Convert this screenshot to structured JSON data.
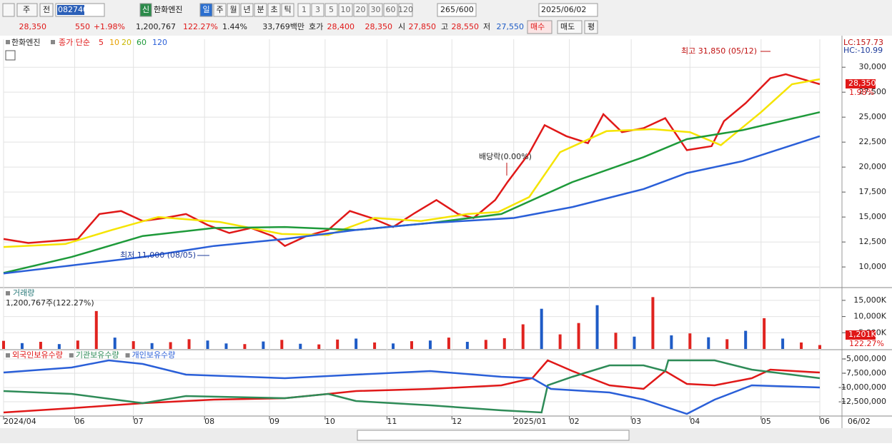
{
  "toolbar": {
    "period": "주",
    "prev": "전",
    "code": "082740",
    "badge": "신",
    "name": "한화엔진",
    "tabs": [
      "일",
      "주",
      "월",
      "년",
      "분",
      "초",
      "틱"
    ],
    "minutes": [
      "1",
      "3",
      "5",
      "10",
      "20",
      "30",
      "60",
      "120"
    ],
    "count": "265",
    "total": "/600",
    "date": "2025/06/02"
  },
  "quote_bar": [
    "28,350",
    "550",
    "+1.98%",
    "1,200,767",
    "122.27%",
    "1.44%",
    "33,769백만",
    "호가",
    "28,400",
    "28,350",
    "시",
    "27,850",
    "고",
    "28,550",
    "저",
    "27,550",
    "매수",
    "매도",
    "평"
  ],
  "chart_data": [
    {
      "type": "line",
      "legend": [
        "한화엔진",
        "종가 단순",
        "5",
        "10",
        "20",
        "60",
        "120"
      ],
      "annotations": [
        "최고 31,850 (05/12)",
        "최저 11,000 (08/05)",
        "배당락(0.00%)"
      ],
      "right_labels": [
        "LC:157.73",
        "HC:-10.99",
        "28,350",
        "1.98%"
      ],
      "xlim": [
        0,
        264
      ],
      "xticks": [
        {
          "value": 0,
          "label": "2024/04"
        },
        {
          "value": 23,
          "label": "06"
        },
        {
          "value": 42,
          "label": "07"
        },
        {
          "value": 65,
          "label": "08"
        },
        {
          "value": 86,
          "label": "09"
        },
        {
          "value": 104,
          "label": "10"
        },
        {
          "value": 124,
          "label": "11"
        },
        {
          "value": 145,
          "label": "12"
        },
        {
          "value": 165,
          "label": "2025/01"
        },
        {
          "value": 183,
          "label": "02"
        },
        {
          "value": 203,
          "label": "03"
        },
        {
          "value": 222,
          "label": "04"
        },
        {
          "value": 245,
          "label": "05"
        },
        {
          "value": 264,
          "label": "06"
        }
      ],
      "end_label": "06/02",
      "ylim": [
        8150,
        32800
      ],
      "yticks": [
        {
          "value": 10000,
          "label": "10,000"
        },
        {
          "value": 12500,
          "label": "12,500"
        },
        {
          "value": 15000,
          "label": "15,000"
        },
        {
          "value": 17500,
          "label": "17,500"
        },
        {
          "value": 20000,
          "label": "20,000"
        },
        {
          "value": 22500,
          "label": "22,500"
        },
        {
          "value": 25000,
          "label": "25,000"
        },
        {
          "value": 27500,
          "label": "27,500"
        },
        {
          "value": 30000,
          "label": "30,000"
        }
      ],
      "grid": true,
      "series": [
        {
          "color": "#e01818",
          "width": 2.5,
          "x": [
            0,
            8,
            16,
            24,
            31,
            38,
            45,
            52,
            59,
            66,
            73,
            80,
            87,
            91,
            98,
            105,
            112,
            119,
            126,
            133,
            140,
            147,
            152,
            159,
            163,
            170,
            175,
            182,
            189,
            194,
            200,
            207,
            214,
            221,
            229,
            233,
            240,
            248,
            253,
            264
          ],
          "values": [
            12800,
            12400,
            12600,
            12800,
            15300,
            15600,
            14600,
            14900,
            15300,
            14200,
            13400,
            13900,
            13100,
            12100,
            13100,
            13700,
            15600,
            14900,
            14000,
            15400,
            16700,
            15300,
            14900,
            16700,
            18500,
            21400,
            24200,
            23100,
            22400,
            25300,
            23500,
            23900,
            24900,
            21700,
            22100,
            24600,
            26400,
            28900,
            29300,
            28300
          ]
        },
        {
          "color": "#f5e400",
          "width": 2.5,
          "x": [
            0,
            20,
            35,
            50,
            70,
            90,
            105,
            120,
            135,
            150,
            160,
            170,
            180,
            195,
            210,
            222,
            232,
            245,
            255,
            264
          ],
          "values": [
            12000,
            12300,
            13700,
            15000,
            14500,
            13300,
            13200,
            14900,
            14600,
            15300,
            15500,
            17000,
            21500,
            23600,
            23800,
            23500,
            22200,
            25500,
            28300,
            28800
          ]
        },
        {
          "color": "#1e9a3a",
          "width": 2.5,
          "x": [
            0,
            22,
            45,
            68,
            91,
            114,
            138,
            161,
            184,
            207,
            221,
            239,
            264
          ],
          "values": [
            9400,
            11000,
            13100,
            13900,
            14000,
            13700,
            14400,
            15300,
            18500,
            21000,
            22800,
            23700,
            25500
          ]
        },
        {
          "color": "#2a5fd8",
          "width": 2.5,
          "x": [
            0,
            45,
            68,
            91,
            114,
            138,
            165,
            184,
            207,
            221,
            239,
            264
          ],
          "values": [
            9350,
            11000,
            12100,
            12800,
            13700,
            14400,
            14900,
            16000,
            17800,
            19400,
            20600,
            23100
          ]
        }
      ]
    },
    {
      "type": "bar",
      "title": "거래량",
      "subtitle": "1,200,767주(122.27%)",
      "right_labels": [
        "1,201K",
        "122.27%"
      ],
      "xlim": [
        0,
        264
      ],
      "ylim": [
        0,
        18500
      ],
      "yticks": [
        {
          "value": 5000,
          "label": "5,000K"
        },
        {
          "value": 10000,
          "label": "10,000K"
        },
        {
          "value": 15000,
          "label": "15,000K"
        }
      ],
      "x": [
        0,
        6,
        12,
        18,
        24,
        30,
        36,
        42,
        48,
        54,
        60,
        66,
        72,
        78,
        84,
        90,
        96,
        102,
        108,
        114,
        120,
        126,
        132,
        138,
        144,
        150,
        156,
        162,
        168,
        174,
        180,
        186,
        192,
        198,
        204,
        210,
        216,
        222,
        228,
        234,
        240,
        246,
        252,
        258,
        264
      ],
      "values": [
        2500,
        1800,
        2200,
        1500,
        2600,
        11700,
        3500,
        2400,
        1800,
        2100,
        3000,
        2600,
        1700,
        1500,
        2300,
        2800,
        1600,
        1400,
        2900,
        3200,
        2000,
        1700,
        2400,
        2600,
        3500,
        2200,
        2800,
        3300,
        7600,
        12400,
        4500,
        8000,
        13500,
        5000,
        3800,
        16000,
        4200,
        4800,
        3600,
        3000,
        5600,
        9500,
        3200,
        2000,
        1201
      ],
      "colors": [
        "#e0231f",
        "#1e5bc6",
        "#e0231f",
        "#1e5bc6",
        "#e0231f",
        "#e0231f",
        "#1e5bc6",
        "#e0231f",
        "#1e5bc6",
        "#e0231f",
        "#e0231f",
        "#1e5bc6",
        "#1e5bc6",
        "#e0231f",
        "#1e5bc6",
        "#e0231f",
        "#1e5bc6",
        "#e0231f",
        "#e0231f",
        "#1e5bc6",
        "#e0231f",
        "#1e5bc6",
        "#e0231f",
        "#1e5bc6",
        "#e0231f",
        "#1e5bc6",
        "#e0231f",
        "#e0231f",
        "#e0231f",
        "#1e5bc6",
        "#e0231f",
        "#e0231f",
        "#1e5bc6",
        "#e0231f",
        "#1e5bc6",
        "#e0231f",
        "#1e5bc6",
        "#e0231f",
        "#1e5bc6",
        "#e0231f",
        "#1e5bc6",
        "#e0231f",
        "#1e5bc6",
        "#e0231f",
        "#e0231f"
      ]
    },
    {
      "type": "line",
      "xlim": [
        0,
        264
      ],
      "ylim": [
        -15000000,
        -4000000
      ],
      "yticks": [
        {
          "value": -12500000,
          "label": "-12,500,000"
        },
        {
          "value": -10000000,
          "label": "-10,000,000"
        },
        {
          "value": -7500000,
          "label": "-7,500,000"
        },
        {
          "value": -5000000,
          "label": "-5,000,000"
        }
      ],
      "series": [
        {
          "name": "외국인보유수량",
          "color": "#e01818",
          "width": 2.5,
          "x": [
            0,
            22,
            45,
            68,
            91,
            105,
            114,
            138,
            161,
            171,
            176,
            184,
            196,
            207,
            214,
            221,
            230,
            242,
            248,
            264
          ],
          "values": [
            -14375000,
            -13625000,
            -12750000,
            -12125000,
            -11875000,
            -11125000,
            -10625000,
            -10250000,
            -9625000,
            -8375000,
            -5250000,
            -7125000,
            -9625000,
            -10250000,
            -7125000,
            -9375000,
            -9625000,
            -8375000,
            -6875000,
            -7375000
          ]
        },
        {
          "name": "기관보유수량",
          "color": "#2e8b57",
          "width": 2.5,
          "x": [
            0,
            22,
            45,
            59,
            91,
            105,
            114,
            138,
            161,
            174,
            176,
            184,
            196,
            207,
            214,
            215,
            230,
            242,
            264
          ],
          "values": [
            -10625000,
            -11125000,
            -12750000,
            -11500000,
            -11875000,
            -11125000,
            -12375000,
            -13125000,
            -14000000,
            -14375000,
            -9625000,
            -8125000,
            -6125000,
            -6125000,
            -7125000,
            -5250000,
            -5250000,
            -6875000,
            -8375000
          ]
        },
        {
          "name": "개인보유수량",
          "color": "#2a5fd8",
          "width": 2.5,
          "x": [
            0,
            22,
            34,
            45,
            59,
            91,
            114,
            138,
            161,
            171,
            177,
            196,
            207,
            221,
            230,
            242,
            264
          ],
          "values": [
            -7375000,
            -6500000,
            -5250000,
            -5875000,
            -7750000,
            -8375000,
            -7750000,
            -7125000,
            -8125000,
            -8375000,
            -10250000,
            -10875000,
            -12125000,
            -14625000,
            -12125000,
            -9625000,
            -10000000
          ]
        }
      ]
    }
  ]
}
